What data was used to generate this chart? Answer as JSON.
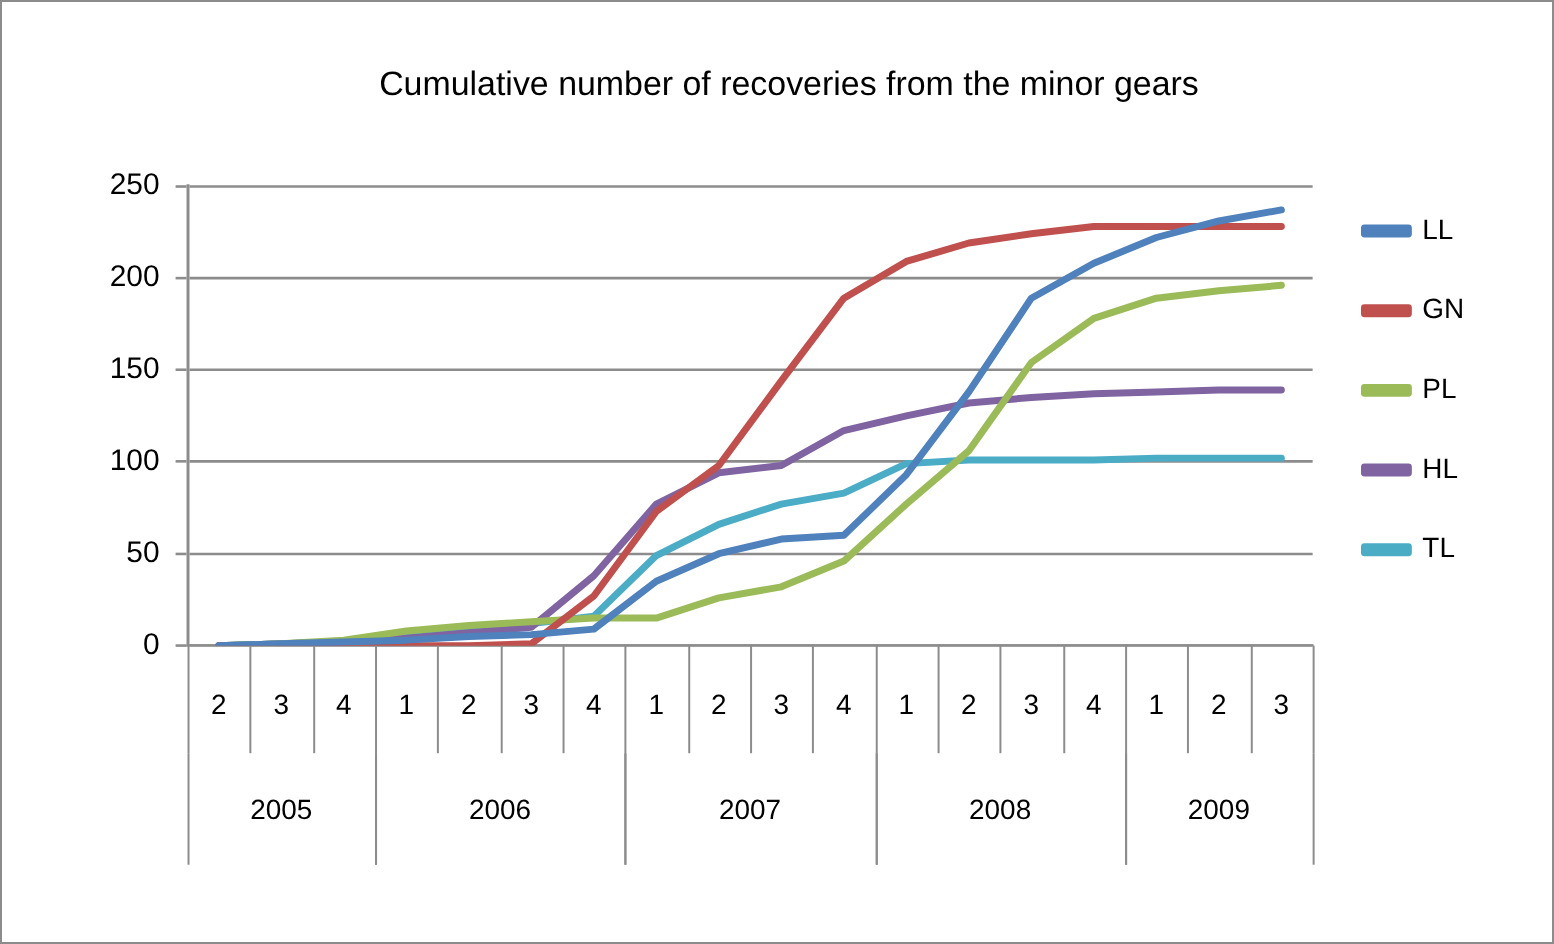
{
  "chart_data": {
    "type": "line",
    "title": "Cumulative number of recoveries from the minor gears",
    "categories": [
      "2",
      "3",
      "4",
      "1",
      "2",
      "3",
      "4",
      "1",
      "2",
      "3",
      "4",
      "1",
      "2",
      "3",
      "4",
      "1",
      "2",
      "3"
    ],
    "series": [
      {
        "name": "LL",
        "color": "#4f81bd",
        "values": [
          0,
          1,
          2,
          3,
          5,
          6,
          9,
          35,
          50,
          58,
          60,
          93,
          138,
          189,
          208,
          222,
          231,
          237
        ]
      },
      {
        "name": "GN",
        "color": "#c0504d",
        "values": [
          0,
          0,
          0,
          0,
          0,
          1,
          27,
          73,
          98,
          144,
          189,
          209,
          219,
          224,
          228,
          228,
          228,
          228
        ]
      },
      {
        "name": "PL",
        "color": "#9bbb59",
        "values": [
          0,
          1,
          3,
          8,
          11,
          13,
          15,
          15,
          26,
          32,
          46,
          77,
          106,
          154,
          178,
          189,
          193,
          196
        ]
      },
      {
        "name": "HL",
        "color": "#8064a2",
        "values": [
          0,
          1,
          2,
          4,
          7,
          10,
          38,
          77,
          94,
          98,
          117,
          125,
          132,
          135,
          137,
          138,
          139,
          139
        ]
      },
      {
        "name": "TL",
        "color": "#4bacc6",
        "values": [
          0,
          1,
          2,
          6,
          10,
          12,
          16,
          49,
          66,
          77,
          83,
          99,
          101,
          101,
          101,
          102,
          102,
          102
        ]
      }
    ],
    "annotations": [
      "2005",
      "2006",
      "2007",
      "2008",
      "2009"
    ],
    "ylim": [
      0,
      250
    ],
    "yticks": [
      0,
      50,
      100,
      150,
      200,
      250
    ],
    "grid": "y",
    "legend": "right",
    "marker": "none",
    "line_style": "solid"
  }
}
